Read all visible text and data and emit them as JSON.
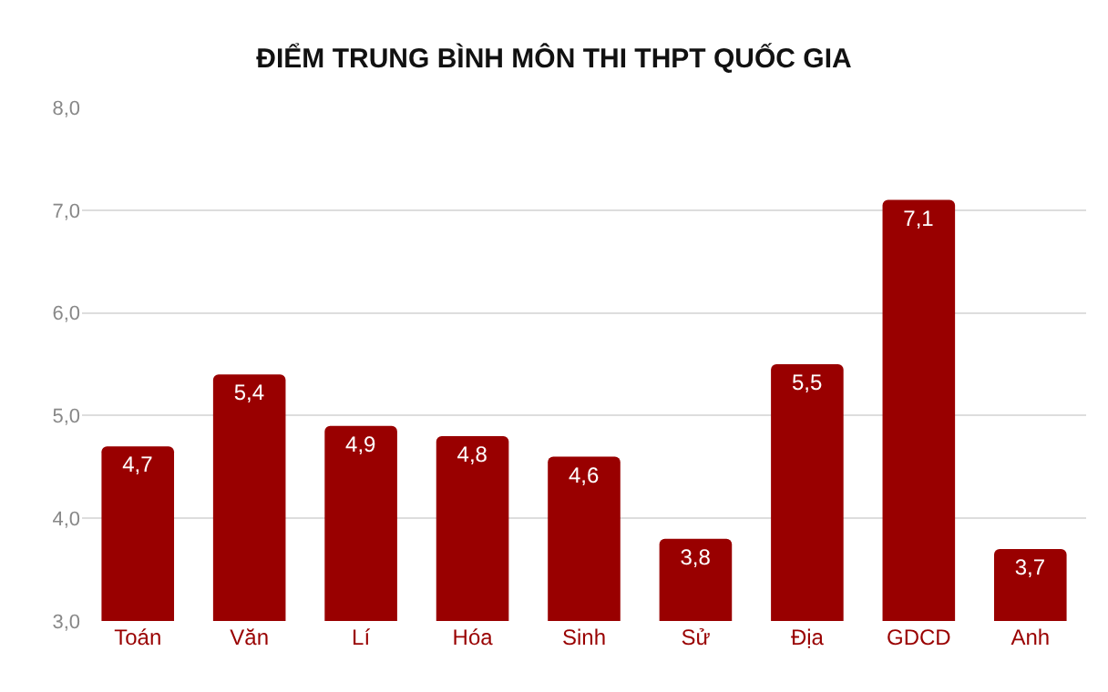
{
  "chart_data": {
    "type": "bar",
    "title": "ĐIỂM TRUNG BÌNH MÔN THI THPT QUỐC GIA",
    "categories": [
      "Toán",
      "Văn",
      "Lí",
      "Hóa",
      "Sinh",
      "Sử",
      "Địa",
      "GDCD",
      "Anh"
    ],
    "values": [
      4.7,
      5.4,
      4.9,
      4.8,
      4.6,
      3.8,
      5.5,
      7.1,
      3.7
    ],
    "value_labels": [
      "4,7",
      "5,4",
      "4,9",
      "4,8",
      "4,6",
      "3,8",
      "5,5",
      "7,1",
      "3,7"
    ],
    "color": "#990000",
    "ylim": [
      3,
      8
    ],
    "yticks": [
      {
        "value": 3,
        "label": "3,0"
      },
      {
        "value": 4,
        "label": "4,0"
      },
      {
        "value": 5,
        "label": "5,0"
      },
      {
        "value": 6,
        "label": "6,0"
      },
      {
        "value": 7,
        "label": "7,0"
      },
      {
        "value": 8,
        "label": "8,0"
      }
    ],
    "grid": "y"
  }
}
